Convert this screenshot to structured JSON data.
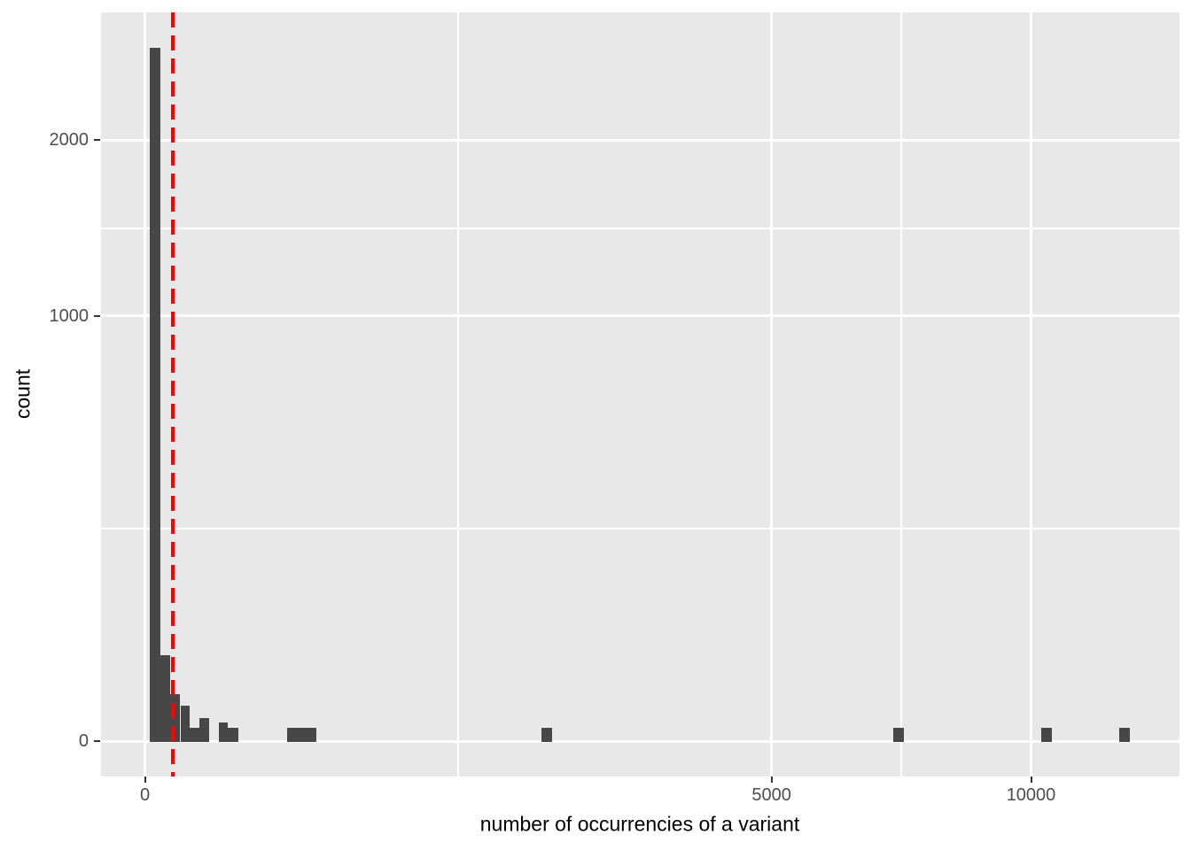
{
  "chart_data": {
    "type": "bar",
    "subtype": "histogram",
    "title": "",
    "xlabel": "number of occurrencies of a variant",
    "ylabel": "count",
    "x_scale": "sqrt",
    "y_scale": "sqrt",
    "x_ticks": [
      0,
      5000,
      10000
    ],
    "y_ticks": [
      0,
      1000,
      2000
    ],
    "x_range": [
      0,
      13600
    ],
    "y_range": [
      0,
      2950
    ],
    "grid": "on",
    "legend": "none",
    "bars": [
      {
        "from": 0.3,
        "to": 3,
        "count": 2660
      },
      {
        "from": 3,
        "to": 8,
        "count": 41
      },
      {
        "from": 8,
        "to": 16,
        "count": 12
      },
      {
        "from": 16,
        "to": 26,
        "count": 7
      },
      {
        "from": 26,
        "to": 38,
        "count": 1
      },
      {
        "from": 38,
        "to": 53,
        "count": 3
      },
      {
        "from": 70,
        "to": 88,
        "count": 2
      },
      {
        "from": 88,
        "to": 111,
        "count": 1
      },
      {
        "from": 258,
        "to": 376,
        "count": 1
      },
      {
        "from": 2003,
        "to": 2116,
        "count": 1
      },
      {
        "from": 7140,
        "to": 7330,
        "count": 1
      },
      {
        "from": 10225,
        "to": 10480,
        "count": 1
      },
      {
        "from": 12090,
        "to": 12360,
        "count": 1
      }
    ],
    "vline": {
      "value": 10,
      "style": "dashed",
      "color": "#FF0000"
    },
    "colors": {
      "bar": "#474747",
      "panel_background": "#E8E8E8",
      "grid": "#FFFFFF",
      "tick_mark": "#333333",
      "tick_label": "#4D4D4D",
      "axis_title": "#000000"
    }
  }
}
